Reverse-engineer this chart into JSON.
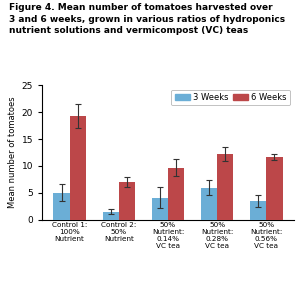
{
  "title_line1": "Figure 4. Mean number of tomatoes harvested over",
  "title_line2": "3 and 6 weeks, grown in various ratios of hydroponics",
  "title_line3": "nutrient solutions and vermicompost (VC) teas",
  "ylabel": "Mean number of tomatoes",
  "categories": [
    "Control 1:\n100%\nNutrient",
    "Control 2:\n50%\nNutrient",
    "50%\nNutrient:\n0.14%\nVC tea",
    "50%\nNutrient:\n0.28%\nVC tea",
    "50%\nNutrient:\n0.56%\nVC tea"
  ],
  "weeks3_vals": [
    5.0,
    1.5,
    4.1,
    5.9,
    3.5
  ],
  "weeks6_vals": [
    19.3,
    7.0,
    9.7,
    12.3,
    11.7
  ],
  "weeks3_err": [
    1.6,
    0.45,
    1.9,
    1.4,
    1.1
  ],
  "weeks6_err": [
    2.3,
    0.9,
    1.5,
    1.3,
    0.6
  ],
  "color_3weeks": "#6BAED6",
  "color_6weeks": "#BC4749",
  "ylim": [
    0,
    25
  ],
  "yticks": [
    0,
    5,
    10,
    15,
    20,
    25
  ],
  "legend_labels": [
    "3 Weeks",
    "6 Weeks"
  ],
  "bar_width": 0.33,
  "bg_color": "#FFFFFF"
}
